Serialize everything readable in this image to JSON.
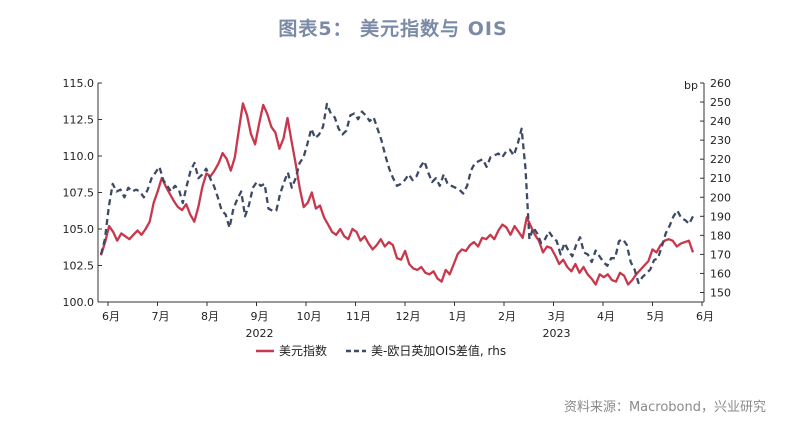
{
  "title": "图表5： 美元指数与 OIS",
  "source": "资料来源：Macrobond，兴业研究",
  "chart_data": {
    "type": "line",
    "x_labels": [
      "6月",
      "7月",
      "8月",
      "9月",
      "10月",
      "11月",
      "12月",
      "1月",
      "2月",
      "3月",
      "4月",
      "5月",
      "6月"
    ],
    "year_labels": [
      {
        "label": "2022",
        "at": "9月"
      },
      {
        "label": "2023",
        "at": "3月"
      }
    ],
    "y_left": {
      "ticks": [
        "100.0",
        "102.5",
        "105.0",
        "107.5",
        "110.0",
        "112.5",
        "115.0"
      ],
      "range": [
        100,
        115
      ]
    },
    "y_right": {
      "unit": "bp",
      "ticks": [
        "150",
        "160",
        "170",
        "180",
        "190",
        "200",
        "210",
        "220",
        "230",
        "240",
        "250",
        "260"
      ],
      "range": [
        145,
        260
      ]
    },
    "series": [
      {
        "name": "美元指数",
        "axis": "left",
        "color": "#c8374b",
        "style": "solid",
        "values": [
          103.2,
          104.1,
          105.2,
          104.8,
          104.2,
          104.7,
          104.5,
          104.3,
          104.6,
          104.9,
          104.6,
          105.0,
          105.5,
          106.8,
          107.6,
          108.5,
          107.9,
          107.4,
          106.9,
          106.5,
          106.3,
          106.7,
          106.0,
          105.5,
          106.5,
          107.9,
          108.8,
          108.6,
          109.0,
          109.5,
          110.2,
          109.8,
          109.0,
          109.9,
          111.8,
          113.6,
          112.8,
          111.5,
          110.8,
          112.2,
          113.5,
          112.9,
          112.0,
          111.6,
          110.5,
          111.2,
          112.6,
          111.0,
          109.5,
          107.8,
          106.5,
          106.8,
          107.5,
          106.4,
          106.6,
          105.8,
          105.3,
          104.8,
          104.6,
          105.0,
          104.5,
          104.3,
          105.0,
          104.8,
          104.2,
          104.5,
          104.0,
          103.6,
          103.9,
          104.3,
          103.8,
          104.1,
          103.9,
          103.0,
          102.9,
          103.5,
          102.6,
          102.3,
          102.2,
          102.4,
          102.0,
          101.9,
          102.1,
          101.6,
          101.4,
          102.2,
          101.9,
          102.6,
          103.3,
          103.6,
          103.5,
          103.9,
          104.1,
          103.8,
          104.4,
          104.3,
          104.6,
          104.3,
          104.9,
          105.3,
          105.1,
          104.6,
          105.2,
          104.8,
          104.4,
          105.8,
          105.2,
          104.6,
          104.2,
          103.4,
          103.8,
          103.7,
          103.2,
          102.6,
          102.9,
          102.4,
          102.1,
          102.6,
          102.0,
          102.4,
          101.9,
          101.6,
          101.2,
          101.9,
          101.7,
          101.9,
          101.5,
          101.4,
          102.0,
          101.8,
          101.2,
          101.5,
          101.9,
          102.2,
          102.5,
          102.8,
          103.6,
          103.4,
          103.9,
          104.2,
          104.3,
          104.2,
          103.8,
          104.0,
          104.1,
          104.2,
          103.4
        ]
      },
      {
        "name": "美-欧日英加OIS差值, rhs",
        "axis": "right",
        "color": "#3d4a66",
        "style": "dashed",
        "values": [
          170,
          178,
          195,
          207,
          203,
          204,
          200,
          205,
          203,
          204,
          203,
          200,
          204,
          210,
          213,
          216,
          209,
          206,
          203,
          206,
          204,
          197,
          206,
          214,
          218,
          210,
          212,
          215,
          210,
          206,
          200,
          193,
          191,
          184,
          194,
          199,
          203,
          190,
          196,
          205,
          208,
          206,
          207,
          194,
          193,
          193,
          202,
          208,
          213,
          205,
          210,
          218,
          221,
          228,
          236,
          231,
          233,
          237,
          249,
          244,
          242,
          236,
          233,
          235,
          243,
          244,
          241,
          245,
          243,
          240,
          242,
          236,
          230,
          222,
          215,
          210,
          206,
          207,
          209,
          212,
          209,
          211,
          216,
          219,
          213,
          208,
          210,
          206,
          212,
          207,
          206,
          205,
          204,
          202,
          206,
          214,
          218,
          219,
          220,
          216,
          221,
          222,
          223,
          221,
          224,
          225,
          222,
          228,
          236,
          215,
          178,
          184,
          181,
          176,
          178,
          182,
          179,
          177,
          170,
          176,
          172,
          169,
          175,
          179,
          171,
          170,
          166,
          172,
          169,
          166,
          164,
          168,
          168,
          177,
          178,
          175,
          166,
          162,
          155,
          158,
          160,
          162,
          167,
          168,
          174,
          181,
          185,
          190,
          193,
          189,
          188,
          186,
          190
        ]
      }
    ]
  },
  "legend": {
    "items": [
      "美元指数",
      "美-欧日英加OIS差值, rhs"
    ]
  }
}
